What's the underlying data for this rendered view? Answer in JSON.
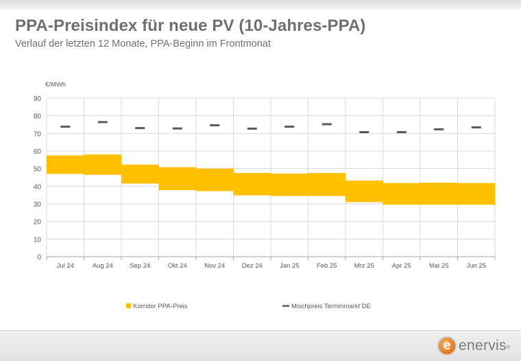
{
  "header": {
    "title": "PPA-Preisindex für neue PV (10-Jahres-PPA)",
    "subtitle": "Verlauf der letzten 12 Monate, PPA-Beginn im Frontmonat"
  },
  "logo": {
    "mark": "e",
    "text": "enervis",
    "reg": "®"
  },
  "colors": {
    "corridor": "#ffc000",
    "marker": "#595959",
    "grid": "#d9d9d9",
    "text": "#6f6f6f",
    "logo_orange": "#e2761b"
  },
  "chart_data": {
    "type": "bar",
    "categories": [
      "Jul 24",
      "Aug 24",
      "Sep 24",
      "Okt 24",
      "Nov 24",
      "Dez 24",
      "Jan 25",
      "Feb 25",
      "Mrz 25",
      "Apr 25",
      "Mai 25",
      "Jun 25"
    ],
    "ylabel": "€/MWh",
    "ylim": [
      0,
      90
    ],
    "yticks": [
      0,
      10,
      20,
      30,
      40,
      50,
      60,
      70,
      80,
      90
    ],
    "grid": true,
    "legend_position": "bottom",
    "series": [
      {
        "name": "Korridor PPA-Preis",
        "kind": "range",
        "low": [
          47.0,
          46.5,
          41.5,
          37.8,
          37.2,
          34.8,
          34.5,
          34.5,
          31.0,
          29.5,
          29.5,
          29.5
        ],
        "high": [
          57.5,
          58.0,
          52.3,
          50.8,
          50.0,
          47.5,
          47.2,
          47.5,
          43.2,
          41.8,
          42.0,
          41.8
        ]
      },
      {
        "name": "Mischpreis Terminmarkt DE",
        "kind": "marker",
        "values": [
          73.8,
          76.4,
          73.0,
          72.8,
          74.6,
          72.7,
          73.8,
          75.2,
          70.7,
          70.7,
          72.3,
          73.4
        ]
      }
    ]
  }
}
